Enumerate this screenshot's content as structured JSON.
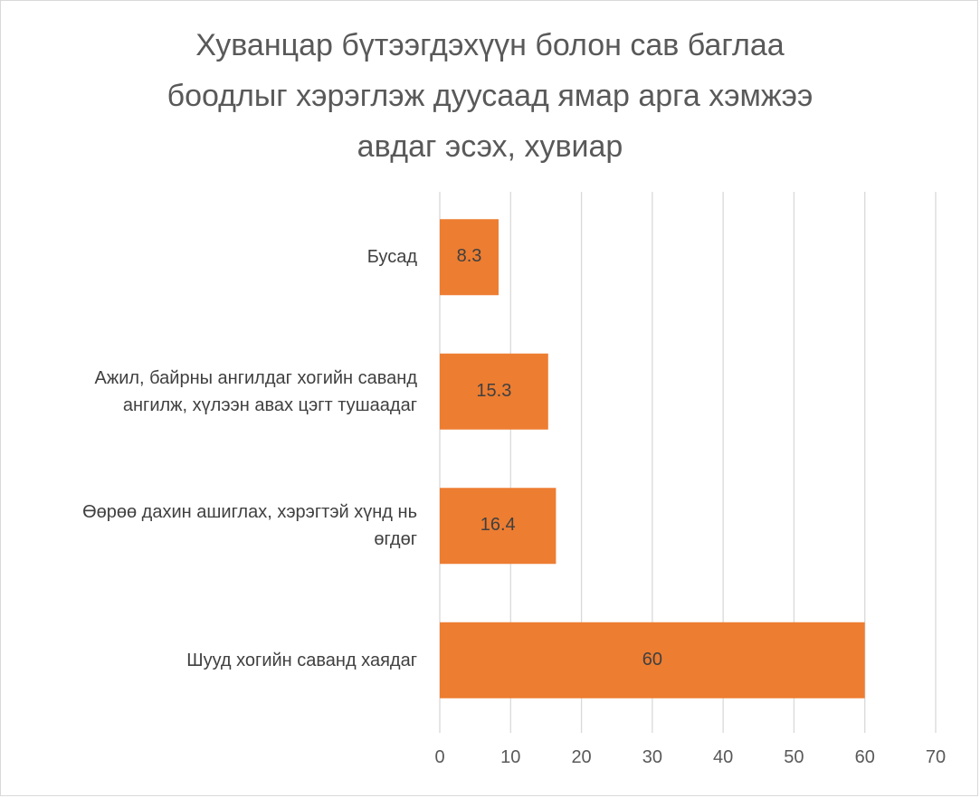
{
  "chart_data": {
    "type": "bar",
    "orientation": "horizontal",
    "title_lines": [
      "Хуванцар бүтээгдэхүүн болон сав баглаа",
      "боодлыг хэрэглэж дуусаад ямар арга хэмжээ",
      "авдаг эсэх, хувиар"
    ],
    "categories": [
      [
        "Бусад"
      ],
      [
        "Ажил, байрны ангилдаг хогийн саванд",
        "ангилж, хүлээн авах цэгт тушаадаг"
      ],
      [
        "Өөрөө дахин ашиглах, хэрэгтэй хүнд нь",
        "өгдөг"
      ],
      [
        "Шууд хогийн саванд хаядаг"
      ]
    ],
    "values": [
      8.3,
      15.3,
      16.4,
      60
    ],
    "data_labels": [
      "8.3",
      "15.3",
      "16.4",
      "60"
    ],
    "x_ticks": [
      "0",
      "10",
      "20",
      "30",
      "40",
      "50",
      "60",
      "70"
    ],
    "xlim": [
      0,
      70
    ],
    "grid": true,
    "legend": "none",
    "bar_color": "#ED7D31",
    "gridline_color": "#d9d9d9",
    "title_color": "#595959"
  }
}
